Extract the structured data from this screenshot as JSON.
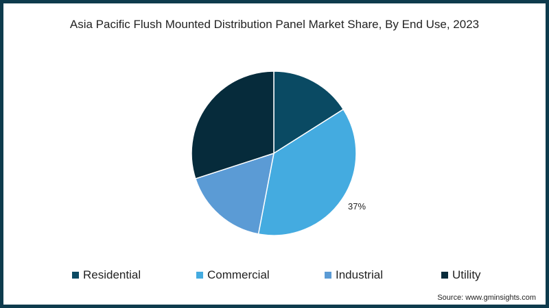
{
  "title": "Asia Pacific Flush Mounted Distribution Panel Market Share, By End Use, 2023",
  "source": "Source: www.gminsights.com",
  "colors": {
    "frame": "#0e3b4d"
  },
  "chart_data": {
    "type": "pie",
    "title": "Asia Pacific Flush Mounted Distribution Panel Market Share, By End Use, 2023",
    "categories": [
      "Residential",
      "Commercial",
      "Industrial",
      "Utility"
    ],
    "values": [
      16,
      37,
      17,
      30
    ],
    "unit": "%",
    "colors": [
      "#0a4a63",
      "#44abe0",
      "#5b9bd5",
      "#062b3b"
    ],
    "data_labels": [
      {
        "category": "Commercial",
        "text": "37%"
      }
    ],
    "start_angle": "12 o'clock, clockwise",
    "legend_position": "bottom"
  },
  "legend": [
    {
      "label": "Residential",
      "color": "#0a4a63"
    },
    {
      "label": "Commercial",
      "color": "#44abe0"
    },
    {
      "label": "Industrial",
      "color": "#5b9bd5"
    },
    {
      "label": "Utility",
      "color": "#062b3b"
    }
  ],
  "labels": {
    "commercial": "37%"
  }
}
